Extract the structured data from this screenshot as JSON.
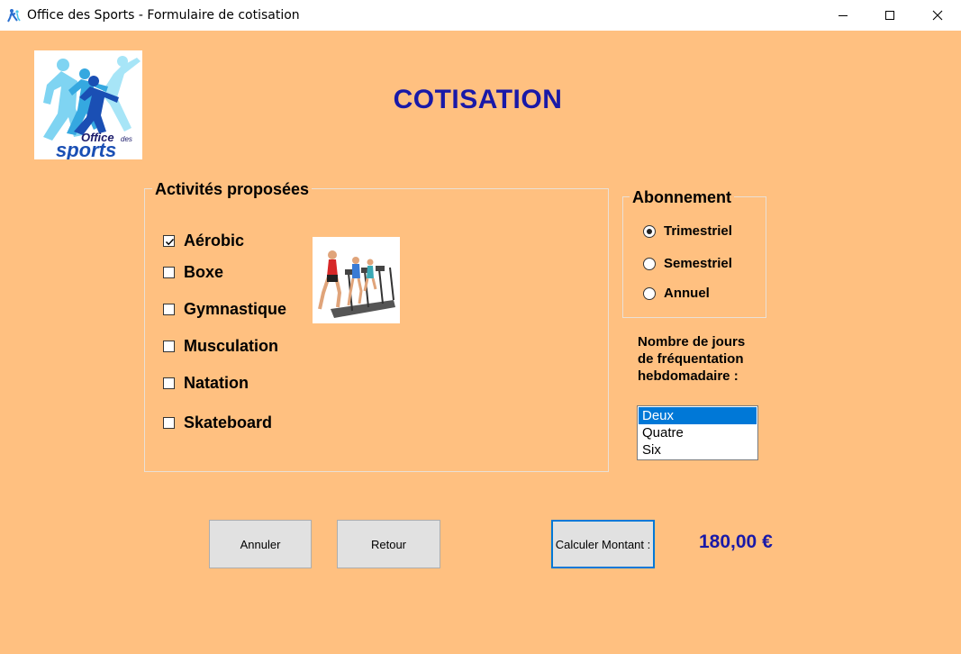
{
  "window": {
    "title": "Office des Sports - Formulaire de cotisation",
    "controls": {
      "minimize_icon": "minimize-icon",
      "maximize_icon": "maximize-icon",
      "close_icon": "close-icon"
    }
  },
  "logo": {
    "text_line1": "Office",
    "text_line1_small": "des",
    "text_line2": "sports"
  },
  "heading": "COTISATION",
  "activities": {
    "label": "Activités proposées",
    "items": [
      {
        "label": "Aérobic",
        "checked": true
      },
      {
        "label": "Boxe",
        "checked": false
      },
      {
        "label": "Gymnastique",
        "checked": false
      },
      {
        "label": "Musculation",
        "checked": false
      },
      {
        "label": "Natation",
        "checked": false
      },
      {
        "label": "Skateboard",
        "checked": false
      }
    ]
  },
  "subscription": {
    "label": "Abonnement",
    "options": [
      {
        "label": "Trimestriel",
        "selected": true
      },
      {
        "label": "Semestriel",
        "selected": false
      },
      {
        "label": "Annuel",
        "selected": false
      }
    ]
  },
  "days": {
    "label_lines": [
      "Nombre de jours",
      "de fréquentation",
      "hebdomadaire :"
    ],
    "options": [
      "Deux",
      "Quatre",
      "Six"
    ],
    "selected": "Deux"
  },
  "buttons": {
    "cancel": "Annuler",
    "back": "Retour",
    "calculate": "Calculer Montant :"
  },
  "amount": "180,00 €",
  "colors": {
    "background": "#FFC080",
    "heading": "#1919A8",
    "selection": "#0078D7"
  }
}
